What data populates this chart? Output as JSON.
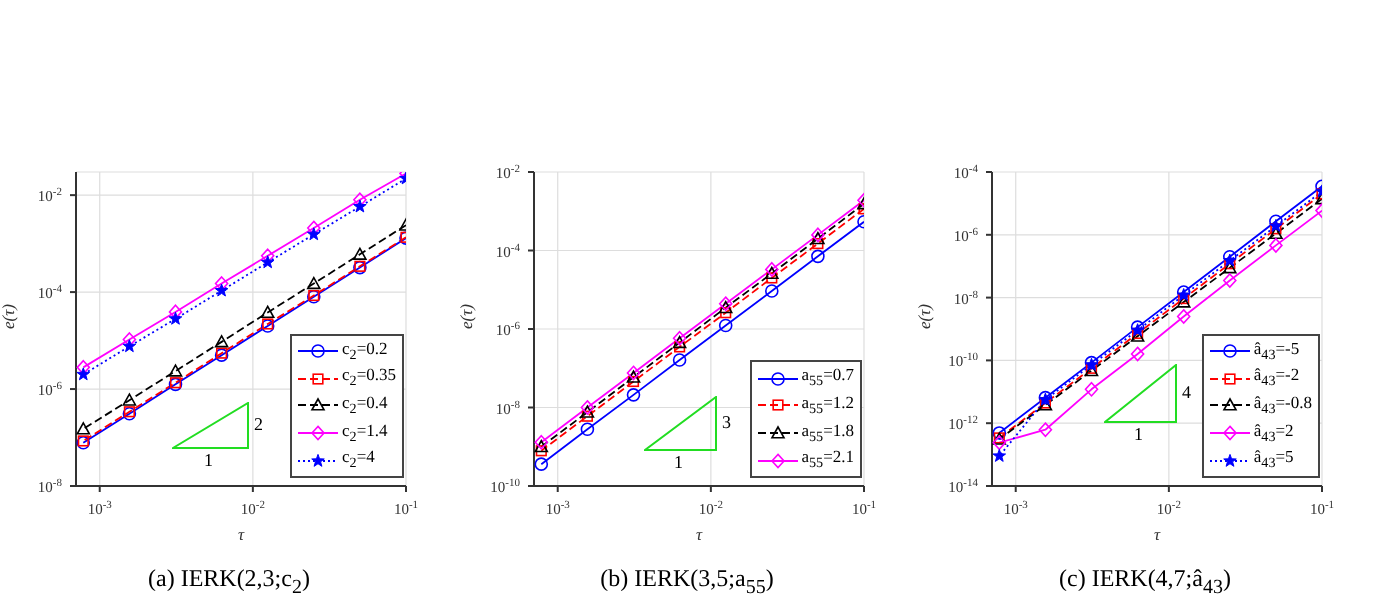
{
  "chart_data": [
    {
      "type": "line",
      "title": "(a) IERK(2,3;c$_{2}$)",
      "xlabel": "τ",
      "ylabel": "e(τ)",
      "log": "xy",
      "grid": true,
      "legend": "bottom right",
      "annotations": [
        "2",
        "1"
      ],
      "x": [
        0.1,
        0.05,
        0.025,
        0.0125,
        0.00625,
        0.003125,
        0.0015625,
        0.00078125
      ],
      "xlim": [
        0.0007,
        0.1
      ],
      "xticks": [
        {
          "value": 0.001,
          "label": "10$^{-3}$"
        },
        {
          "value": 0.01,
          "label": "10$^{-2}$"
        },
        {
          "value": 0.1,
          "label": "10$^{-1}$"
        }
      ],
      "ylim": [
        1e-08,
        0.03
      ],
      "yticks": [
        {
          "value": 1e-08,
          "label": "10$^{-8}$"
        },
        {
          "value": 1e-06,
          "label": "10$^{-6}$"
        },
        {
          "value": 0.0001,
          "label": "10$^{-4}$"
        },
        {
          "value": 0.01,
          "label": "10$^{-2}$"
        }
      ],
      "series": [
        {
          "name": "c$_{2}$=0.2",
          "color": "#0000ff",
          "marker": "circle",
          "line_style": "solid",
          "values": [
            0.0013,
            0.00032,
            8e-05,
            2e-05,
            5e-06,
            1.25e-06,
            3.1e-07,
            7.8e-08
          ]
        },
        {
          "name": "c$_{2}$=0.35",
          "color": "#ff0000",
          "marker": "square",
          "line_style": "dashed",
          "values": [
            0.00135,
            0.00034,
            8.5e-05,
            2.2e-05,
            5.5e-06,
            1.35e-06,
            3.4e-07,
            8.5e-08
          ]
        },
        {
          "name": "c$_{2}$=0.4",
          "color": "#000000",
          "marker": "triangle",
          "line_style": "dashed",
          "values": [
            0.0024,
            0.0006,
            0.00015,
            3.8e-05,
            9.4e-06,
            2.35e-06,
            5.9e-07,
            1.5e-07
          ]
        },
        {
          "name": "c$_{2}$=1.4",
          "color": "#ff00ff",
          "marker": "diamond",
          "line_style": "solid",
          "values": [
            0.028,
            0.008,
            0.0021,
            0.00056,
            0.00015,
            3.9e-05,
            1.05e-05,
            2.8e-06
          ]
        },
        {
          "name": "c$_{2}$=4",
          "color": "#0000ff",
          "marker": "star",
          "line_style": "dotted",
          "values": [
            0.022,
            0.0058,
            0.00155,
            0.00041,
            0.000107,
            2.8e-05,
            7.6e-06,
            2e-06
          ]
        }
      ]
    },
    {
      "type": "line",
      "title": "(b) IERK(3,5;a$_{55}$)",
      "xlabel": "τ",
      "ylabel": "e(τ)",
      "log": "xy",
      "grid": true,
      "legend": "bottom right",
      "annotations": [
        "3",
        "1"
      ],
      "x": [
        0.1,
        0.05,
        0.025,
        0.0125,
        0.00625,
        0.003125,
        0.0015625,
        0.00078125
      ],
      "xlim": [
        0.0007,
        0.1
      ],
      "xticks": [
        {
          "value": 0.001,
          "label": "10$^{-3}$"
        },
        {
          "value": 0.01,
          "label": "10$^{-2}$"
        },
        {
          "value": 0.1,
          "label": "10$^{-1}$"
        }
      ],
      "ylim": [
        1e-10,
        0.01
      ],
      "yticks": [
        {
          "value": 1e-10,
          "label": "10$^{-10}$"
        },
        {
          "value": 1e-08,
          "label": "10$^{-8}$"
        },
        {
          "value": 1e-06,
          "label": "10$^{-6}$"
        },
        {
          "value": 0.0001,
          "label": "10$^{-4}$"
        },
        {
          "value": 0.01,
          "label": "10$^{-2}$"
        }
      ],
      "series": [
        {
          "name": "a$_{55}$=0.7",
          "color": "#0000ff",
          "marker": "circle",
          "line_style": "solid",
          "values": [
            0.00054,
            7.1e-05,
            9.3e-06,
            1.23e-06,
            1.62e-07,
            2.1e-08,
            2.8e-09,
            3.6e-10
          ]
        },
        {
          "name": "a$_{55}$=1.2",
          "color": "#ff0000",
          "marker": "square",
          "line_style": "dashed",
          "values": [
            0.00115,
            0.00015,
            2e-05,
            2.6e-06,
            3.5e-07,
            4.6e-08,
            6e-09,
            7.9e-10
          ]
        },
        {
          "name": "a$_{55}$=1.8",
          "color": "#000000",
          "marker": "triangle",
          "line_style": "dashed",
          "values": [
            0.00155,
            0.0002,
            2.6e-05,
            3.5e-06,
            4.5e-07,
            5.9e-08,
            7.6e-09,
            1e-09
          ]
        },
        {
          "name": "a$_{55}$=2.1",
          "color": "#ff00ff",
          "marker": "diamond",
          "line_style": "solid",
          "values": [
            0.0019,
            0.00025,
            3.3e-05,
            4.4e-06,
            5.8e-07,
            7.6e-08,
            1e-08,
            1.3e-09
          ]
        }
      ]
    },
    {
      "type": "line",
      "title": "(c) IERK(4,7;â$_{43}$)",
      "xlabel": "τ",
      "ylabel": "e(τ)",
      "log": "xy",
      "grid": true,
      "legend": "bottom right",
      "annotations": [
        "4",
        "1"
      ],
      "x": [
        0.1,
        0.05,
        0.025,
        0.0125,
        0.00625,
        0.003125,
        0.0015625,
        0.00078125
      ],
      "xlim": [
        0.0007,
        0.1
      ],
      "xticks": [
        {
          "value": 0.001,
          "label": "10$^{-3}$"
        },
        {
          "value": 0.01,
          "label": "10$^{-2}$"
        },
        {
          "value": 0.1,
          "label": "10$^{-1}$"
        }
      ],
      "ylim": [
        1e-14,
        0.0001
      ],
      "yticks": [
        {
          "value": 1e-14,
          "label": "10$^{-14}$"
        },
        {
          "value": 1e-12,
          "label": "10$^{-12}$"
        },
        {
          "value": 1e-10,
          "label": "10$^{-10}$"
        },
        {
          "value": 1e-08,
          "label": "10$^{-8}$"
        },
        {
          "value": 1e-06,
          "label": "10$^{-6}$"
        },
        {
          "value": 0.0001,
          "label": "10$^{-4}$"
        }
      ],
      "series": [
        {
          "name": "â$_{43}$=-5",
          "color": "#0000ff",
          "marker": "circle",
          "line_style": "solid",
          "values": [
            3.5e-05,
            2.7e-06,
            2e-07,
            1.5e-08,
            1.15e-09,
            8.5e-11,
            6.5e-12,
            4.9e-13
          ]
        },
        {
          "name": "â$_{43}$=-2",
          "color": "#ff0000",
          "marker": "square",
          "line_style": "dashed",
          "values": [
            2e-05,
            1.55e-06,
            1.2e-07,
            9.3e-09,
            7.2e-10,
            5.6e-11,
            4.4e-12,
            3.4e-13
          ]
        },
        {
          "name": "â$_{43}$=-0.8",
          "color": "#000000",
          "marker": "triangle",
          "line_style": "dashed",
          "values": [
            1.4e-05,
            1.1e-06,
            8.9e-08,
            7.2e-09,
            5.9e-10,
            4.7e-11,
            3.8e-12,
            3.1e-13
          ]
        },
        {
          "name": "â$_{43}$=2",
          "color": "#ff00ff",
          "marker": "diamond",
          "line_style": "solid",
          "values": [
            5.9e-06,
            4.6e-07,
            3.5e-08,
            2.5e-09,
            1.6e-10,
            1.2e-11,
            6.2e-13,
            2.4e-13
          ]
        },
        {
          "name": "â$_{43}$=5",
          "color": "#0000ff",
          "marker": "star",
          "line_style": "dotted",
          "values": [
            2.4e-05,
            1.9e-06,
            1.5e-07,
            1.2e-08,
            9.1e-10,
            7.2e-11,
            5.6e-12,
            9e-14
          ]
        }
      ]
    }
  ]
}
